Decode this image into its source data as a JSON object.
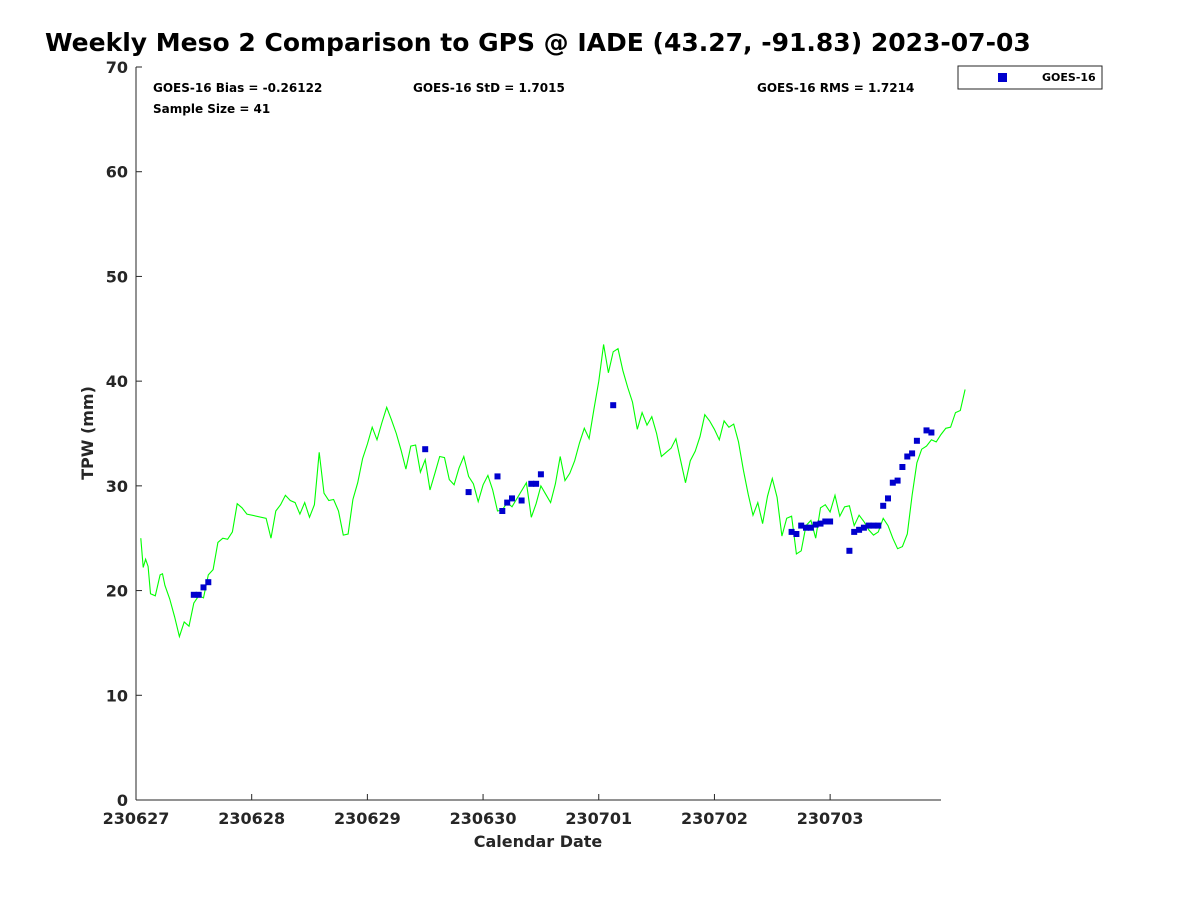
{
  "chart_data": {
    "type": "scatter",
    "title": "Weekly Meso 2 Comparison to GPS @ IADE (43.27, -91.83) 2023-07-03",
    "xlabel": "Calendar Date",
    "ylabel": "TPW (mm)",
    "ylim": [
      0,
      70
    ],
    "yticks": [
      0,
      10,
      20,
      30,
      40,
      50,
      60,
      70
    ],
    "xlim": [
      "2023-06-27T00:00",
      "2023-07-03T23:00"
    ],
    "xticks": [
      {
        "date": "2023-06-27",
        "label": "230627"
      },
      {
        "date": "2023-06-28",
        "label": "230628"
      },
      {
        "date": "2023-06-29",
        "label": "230629"
      },
      {
        "date": "2023-06-30",
        "label": "230630"
      },
      {
        "date": "2023-07-01",
        "label": "230701"
      },
      {
        "date": "2023-07-02",
        "label": "230702"
      },
      {
        "date": "2023-07-03",
        "label": "230703"
      }
    ],
    "grid": false,
    "legend_position": "outside-top-right",
    "stats": {
      "bias": "GOES-16 Bias = -0.26122",
      "std": "GOES-16 StD = 1.7015",
      "rms": "GOES-16 RMS = 1.7214",
      "sample_size": "Sample Size = 41"
    },
    "series": [
      {
        "name": "",
        "type": "line",
        "color": "#00ff00",
        "points": [
          [
            "2023-06-27T01:00",
            25.0
          ],
          [
            "2023-06-27T01:30",
            22.2
          ],
          [
            "2023-06-27T02:00",
            23.0
          ],
          [
            "2023-06-27T02:30",
            22.3
          ],
          [
            "2023-06-27T03:00",
            19.7
          ],
          [
            "2023-06-27T04:00",
            19.5
          ],
          [
            "2023-06-27T05:00",
            21.5
          ],
          [
            "2023-06-27T05:30",
            21.6
          ],
          [
            "2023-06-27T06:00",
            20.5
          ],
          [
            "2023-06-27T07:00",
            19.2
          ],
          [
            "2023-06-27T08:00",
            17.5
          ],
          [
            "2023-06-27T09:00",
            15.6
          ],
          [
            "2023-06-27T10:00",
            17.0
          ],
          [
            "2023-06-27T11:00",
            16.6
          ],
          [
            "2023-06-27T12:00",
            18.8
          ],
          [
            "2023-06-27T13:00",
            19.5
          ],
          [
            "2023-06-27T14:00",
            19.3
          ],
          [
            "2023-06-27T15:00",
            21.5
          ],
          [
            "2023-06-27T16:00",
            22.0
          ],
          [
            "2023-06-27T17:00",
            24.6
          ],
          [
            "2023-06-27T18:00",
            25.0
          ],
          [
            "2023-06-27T19:00",
            24.9
          ],
          [
            "2023-06-27T20:00",
            25.6
          ],
          [
            "2023-06-27T21:00",
            28.3
          ],
          [
            "2023-06-27T22:00",
            27.9
          ],
          [
            "2023-06-27T23:00",
            27.3
          ],
          [
            "2023-06-28T03:00",
            26.9
          ],
          [
            "2023-06-28T04:00",
            25.0
          ],
          [
            "2023-06-28T05:00",
            27.6
          ],
          [
            "2023-06-28T06:00",
            28.2
          ],
          [
            "2023-06-28T07:00",
            29.1
          ],
          [
            "2023-06-28T08:00",
            28.6
          ],
          [
            "2023-06-28T09:00",
            28.4
          ],
          [
            "2023-06-28T10:00",
            27.3
          ],
          [
            "2023-06-28T11:00",
            28.4
          ],
          [
            "2023-06-28T12:00",
            27.0
          ],
          [
            "2023-06-28T13:00",
            28.2
          ],
          [
            "2023-06-28T14:00",
            33.2
          ],
          [
            "2023-06-28T15:00",
            29.3
          ],
          [
            "2023-06-28T16:00",
            28.6
          ],
          [
            "2023-06-28T17:00",
            28.7
          ],
          [
            "2023-06-28T18:00",
            27.6
          ],
          [
            "2023-06-28T19:00",
            25.3
          ],
          [
            "2023-06-28T20:00",
            25.4
          ],
          [
            "2023-06-28T21:00",
            28.7
          ],
          [
            "2023-06-28T22:00",
            30.3
          ],
          [
            "2023-06-28T23:00",
            32.6
          ],
          [
            "2023-06-29T00:00",
            34.0
          ],
          [
            "2023-06-29T01:00",
            35.6
          ],
          [
            "2023-06-29T02:00",
            34.4
          ],
          [
            "2023-06-29T03:00",
            36.0
          ],
          [
            "2023-06-29T04:00",
            37.5
          ],
          [
            "2023-06-29T05:00",
            36.3
          ],
          [
            "2023-06-29T06:00",
            35.0
          ],
          [
            "2023-06-29T07:00",
            33.4
          ],
          [
            "2023-06-29T08:00",
            31.6
          ],
          [
            "2023-06-29T09:00",
            33.8
          ],
          [
            "2023-06-29T10:00",
            33.9
          ],
          [
            "2023-06-29T11:00",
            31.3
          ],
          [
            "2023-06-29T12:00",
            32.5
          ],
          [
            "2023-06-29T13:00",
            29.6
          ],
          [
            "2023-06-29T14:00",
            31.2
          ],
          [
            "2023-06-29T15:00",
            32.8
          ],
          [
            "2023-06-29T16:00",
            32.7
          ],
          [
            "2023-06-29T17:00",
            30.6
          ],
          [
            "2023-06-29T18:00",
            30.1
          ],
          [
            "2023-06-29T19:00",
            31.7
          ],
          [
            "2023-06-29T20:00",
            32.8
          ],
          [
            "2023-06-29T21:00",
            30.9
          ],
          [
            "2023-06-29T22:00",
            30.2
          ],
          [
            "2023-06-29T23:00",
            28.5
          ],
          [
            "2023-06-30T00:00",
            30.1
          ],
          [
            "2023-06-30T01:00",
            31.0
          ],
          [
            "2023-06-30T02:00",
            29.6
          ],
          [
            "2023-06-30T03:00",
            27.6
          ],
          [
            "2023-06-30T04:00",
            27.7
          ],
          [
            "2023-06-30T05:00",
            28.4
          ],
          [
            "2023-06-30T06:00",
            28.0
          ],
          [
            "2023-06-30T09:00",
            30.3
          ],
          [
            "2023-06-30T10:00",
            27.0
          ],
          [
            "2023-06-30T11:00",
            28.3
          ],
          [
            "2023-06-30T12:00",
            30.0
          ],
          [
            "2023-06-30T13:00",
            29.2
          ],
          [
            "2023-06-30T14:00",
            28.4
          ],
          [
            "2023-06-30T15:00",
            30.2
          ],
          [
            "2023-06-30T16:00",
            32.8
          ],
          [
            "2023-06-30T17:00",
            30.5
          ],
          [
            "2023-06-30T18:00",
            31.2
          ],
          [
            "2023-06-30T19:00",
            32.4
          ],
          [
            "2023-06-30T20:00",
            34.1
          ],
          [
            "2023-06-30T21:00",
            35.5
          ],
          [
            "2023-06-30T22:00",
            34.5
          ],
          [
            "2023-06-30T23:00",
            37.3
          ],
          [
            "2023-07-01T00:00",
            40.0
          ],
          [
            "2023-07-01T01:00",
            43.5
          ],
          [
            "2023-07-01T02:00",
            40.8
          ],
          [
            "2023-07-01T03:00",
            42.8
          ],
          [
            "2023-07-01T04:00",
            43.1
          ],
          [
            "2023-07-01T05:00",
            41.0
          ],
          [
            "2023-07-01T06:00",
            39.4
          ],
          [
            "2023-07-01T07:00",
            38.0
          ],
          [
            "2023-07-01T08:00",
            35.4
          ],
          [
            "2023-07-01T09:00",
            37.0
          ],
          [
            "2023-07-01T10:00",
            35.8
          ],
          [
            "2023-07-01T11:00",
            36.6
          ],
          [
            "2023-07-01T12:00",
            35.0
          ],
          [
            "2023-07-01T13:00",
            32.8
          ],
          [
            "2023-07-01T14:00",
            33.2
          ],
          [
            "2023-07-01T15:00",
            33.6
          ],
          [
            "2023-07-01T16:00",
            34.5
          ],
          [
            "2023-07-01T17:00",
            32.4
          ],
          [
            "2023-07-01T18:00",
            30.3
          ],
          [
            "2023-07-01T19:00",
            32.4
          ],
          [
            "2023-07-01T20:00",
            33.3
          ],
          [
            "2023-07-01T21:00",
            34.7
          ],
          [
            "2023-07-01T22:00",
            36.8
          ],
          [
            "2023-07-01T23:00",
            36.2
          ],
          [
            "2023-07-02T00:00",
            35.4
          ],
          [
            "2023-07-02T01:00",
            34.4
          ],
          [
            "2023-07-02T02:00",
            36.2
          ],
          [
            "2023-07-02T03:00",
            35.6
          ],
          [
            "2023-07-02T04:00",
            35.9
          ],
          [
            "2023-07-02T05:00",
            34.2
          ],
          [
            "2023-07-02T06:00",
            31.5
          ],
          [
            "2023-07-02T07:00",
            29.2
          ],
          [
            "2023-07-02T08:00",
            27.2
          ],
          [
            "2023-07-02T09:00",
            28.4
          ],
          [
            "2023-07-02T10:00",
            26.4
          ],
          [
            "2023-07-02T11:00",
            29.0
          ],
          [
            "2023-07-02T12:00",
            30.7
          ],
          [
            "2023-07-02T13:00",
            28.9
          ],
          [
            "2023-07-02T14:00",
            25.2
          ],
          [
            "2023-07-02T15:00",
            26.9
          ],
          [
            "2023-07-02T16:00",
            27.1
          ],
          [
            "2023-07-02T17:00",
            23.5
          ],
          [
            "2023-07-02T18:00",
            23.8
          ],
          [
            "2023-07-02T19:00",
            26.2
          ],
          [
            "2023-07-02T20:00",
            26.7
          ],
          [
            "2023-07-02T21:00",
            25.0
          ],
          [
            "2023-07-02T22:00",
            27.9
          ],
          [
            "2023-07-02T23:00",
            28.2
          ],
          [
            "2023-07-03T00:00",
            27.5
          ],
          [
            "2023-07-03T01:00",
            29.1
          ],
          [
            "2023-07-03T02:00",
            27.1
          ],
          [
            "2023-07-03T03:00",
            28.0
          ],
          [
            "2023-07-03T04:00",
            28.1
          ],
          [
            "2023-07-03T05:00",
            26.2
          ],
          [
            "2023-07-03T06:00",
            27.2
          ],
          [
            "2023-07-03T07:00",
            26.6
          ],
          [
            "2023-07-03T08:00",
            25.8
          ],
          [
            "2023-07-03T09:00",
            25.3
          ],
          [
            "2023-07-03T10:00",
            25.6
          ],
          [
            "2023-07-03T11:00",
            26.9
          ],
          [
            "2023-07-03T12:00",
            26.2
          ],
          [
            "2023-07-03T13:00",
            25.0
          ],
          [
            "2023-07-03T14:00",
            24.0
          ],
          [
            "2023-07-03T15:00",
            24.2
          ],
          [
            "2023-07-03T16:00",
            25.4
          ],
          [
            "2023-07-03T17:00",
            29.1
          ],
          [
            "2023-07-03T18:00",
            32.2
          ],
          [
            "2023-07-03T19:00",
            33.5
          ],
          [
            "2023-07-03T20:00",
            33.8
          ],
          [
            "2023-07-03T21:00",
            34.4
          ],
          [
            "2023-07-03T22:00",
            34.2
          ],
          [
            "2023-07-03T23:00",
            34.9
          ],
          [
            "2023-07-04T00:00",
            35.5
          ],
          [
            "2023-07-04T01:00",
            35.6
          ],
          [
            "2023-07-04T02:00",
            37.0
          ],
          [
            "2023-07-04T03:00",
            37.2
          ],
          [
            "2023-07-04T04:00",
            39.2
          ]
        ]
      },
      {
        "name": "GOES-16",
        "type": "scatter",
        "color": "#0000cd",
        "marker": "square",
        "points": [
          [
            "2023-06-27T12:00",
            19.6
          ],
          [
            "2023-06-27T13:00",
            19.6
          ],
          [
            "2023-06-27T14:00",
            20.3
          ],
          [
            "2023-06-27T15:00",
            20.8
          ],
          [
            "2023-06-29T12:00",
            33.5
          ],
          [
            "2023-06-29T21:00",
            29.4
          ],
          [
            "2023-06-30T03:00",
            30.9
          ],
          [
            "2023-06-30T04:00",
            27.6
          ],
          [
            "2023-06-30T05:00",
            28.4
          ],
          [
            "2023-06-30T06:00",
            28.8
          ],
          [
            "2023-06-30T08:00",
            28.6
          ],
          [
            "2023-06-30T10:00",
            30.2
          ],
          [
            "2023-06-30T11:00",
            30.2
          ],
          [
            "2023-06-30T12:00",
            31.1
          ],
          [
            "2023-07-01T03:00",
            37.7
          ],
          [
            "2023-07-02T16:00",
            25.6
          ],
          [
            "2023-07-02T17:00",
            25.4
          ],
          [
            "2023-07-02T18:00",
            26.2
          ],
          [
            "2023-07-02T19:00",
            26.0
          ],
          [
            "2023-07-02T20:00",
            26.0
          ],
          [
            "2023-07-02T21:00",
            26.3
          ],
          [
            "2023-07-02T22:00",
            26.4
          ],
          [
            "2023-07-02T23:00",
            26.6
          ],
          [
            "2023-07-03T00:00",
            26.6
          ],
          [
            "2023-07-03T04:00",
            23.8
          ],
          [
            "2023-07-03T05:00",
            25.6
          ],
          [
            "2023-07-03T06:00",
            25.8
          ],
          [
            "2023-07-03T07:00",
            26.0
          ],
          [
            "2023-07-03T08:00",
            26.2
          ],
          [
            "2023-07-03T09:00",
            26.2
          ],
          [
            "2023-07-03T10:00",
            26.2
          ],
          [
            "2023-07-03T11:00",
            28.1
          ],
          [
            "2023-07-03T12:00",
            28.8
          ],
          [
            "2023-07-03T13:00",
            30.3
          ],
          [
            "2023-07-03T14:00",
            30.5
          ],
          [
            "2023-07-03T15:00",
            31.8
          ],
          [
            "2023-07-03T16:00",
            32.8
          ],
          [
            "2023-07-03T17:00",
            33.1
          ],
          [
            "2023-07-03T18:00",
            34.3
          ],
          [
            "2023-07-03T20:00",
            35.3
          ],
          [
            "2023-07-03T21:00",
            35.1
          ]
        ]
      }
    ]
  }
}
